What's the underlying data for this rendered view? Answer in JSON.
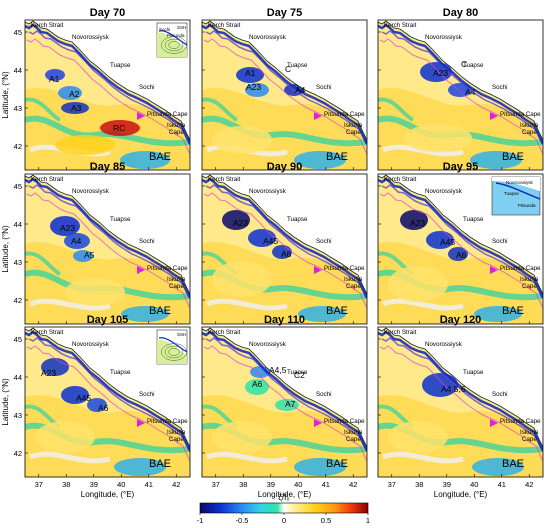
{
  "panels": [
    {
      "title": "Day 70",
      "eddies": [
        "A1",
        "A2",
        "A3",
        "RC"
      ],
      "inset": {
        "labels": [
          "Sochi",
          "SSH",
          "Pitsunda"
        ]
      }
    },
    {
      "title": "Day 75",
      "eddies": [
        "A1",
        "A23",
        "A4",
        "C"
      ],
      "inset": null
    },
    {
      "title": "Day 80",
      "eddies": [
        "A23",
        "C",
        "A4"
      ],
      "inset": null
    },
    {
      "title": "Day 85",
      "eddies": [
        "A23",
        "A4",
        "A5"
      ],
      "inset": null
    },
    {
      "title": "Day 90",
      "eddies": [
        "A23",
        "A45",
        "A6"
      ],
      "inset": null
    },
    {
      "title": "Day 95",
      "eddies": [
        "A23",
        "A45",
        "A6"
      ],
      "inset": {
        "labels": [
          "Novorossiysk",
          "Tuapse",
          "Pitsunda"
        ]
      }
    },
    {
      "title": "Day 105",
      "eddies": [
        "A23",
        "A45",
        "A6"
      ],
      "inset": {
        "labels": [
          "SSH"
        ]
      }
    },
    {
      "title": "Day 110",
      "eddies": [
        "A4,5",
        "A6",
        "C2",
        "A7"
      ],
      "inset": null
    },
    {
      "title": "Day 120",
      "eddies": [
        "A4,5,6"
      ],
      "inset": null
    }
  ],
  "places": {
    "kerch": "Kerch Strait",
    "novorossiysk": "Novorossiysk",
    "tuapse": "Tuapse",
    "sochi": "Sochi",
    "pitsunda": "Pitsunda Cape",
    "iskuria": [
      "Iskuria",
      "Cape"
    ],
    "bae": "BAE"
  },
  "axes": {
    "xlabel": "Longitude, (°E)",
    "ylabel": "Latitude, (°N)",
    "xticks": [
      "37",
      "38",
      "39",
      "40",
      "41",
      "42"
    ],
    "yticks": [
      "45",
      "44",
      "43",
      "42"
    ]
  },
  "colorbar": {
    "label": "ζ/f₀",
    "ticks": [
      "-1",
      "-0.5",
      "0",
      "0.5",
      "1"
    ],
    "colors": [
      "#08086b",
      "#0a30d0",
      "#2a8cf2",
      "#32d2e6",
      "#2fe4a8",
      "#ffffff",
      "#fff3a0",
      "#ffd21f",
      "#ff9a10",
      "#f03a0a",
      "#8a0000"
    ]
  }
}
